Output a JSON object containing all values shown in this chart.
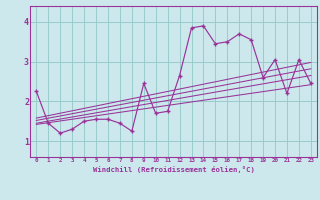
{
  "xlabel": "Windchill (Refroidissement éolien,°C)",
  "bg_color": "#cce8ec",
  "grid_color": "#99cccc",
  "line_color": "#993399",
  "spine_color": "#993399",
  "xlim": [
    -0.5,
    23.5
  ],
  "ylim": [
    0.6,
    4.4
  ],
  "xticks": [
    0,
    1,
    2,
    3,
    4,
    5,
    6,
    7,
    8,
    9,
    10,
    11,
    12,
    13,
    14,
    15,
    16,
    17,
    18,
    19,
    20,
    21,
    22,
    23
  ],
  "yticks": [
    1,
    2,
    3,
    4
  ],
  "series": [
    [
      0,
      2.25
    ],
    [
      1,
      1.45
    ],
    [
      2,
      1.2
    ],
    [
      3,
      1.3
    ],
    [
      4,
      1.5
    ],
    [
      5,
      1.55
    ],
    [
      6,
      1.55
    ],
    [
      7,
      1.45
    ],
    [
      8,
      1.25
    ],
    [
      9,
      2.45
    ],
    [
      10,
      1.7
    ],
    [
      11,
      1.75
    ],
    [
      12,
      2.65
    ],
    [
      13,
      3.85
    ],
    [
      14,
      3.9
    ],
    [
      15,
      3.45
    ],
    [
      16,
      3.5
    ],
    [
      17,
      3.7
    ],
    [
      18,
      3.55
    ],
    [
      19,
      2.6
    ],
    [
      20,
      3.05
    ],
    [
      21,
      2.2
    ],
    [
      22,
      3.05
    ],
    [
      23,
      2.45
    ]
  ],
  "trend_series": [
    [
      [
        0,
        1.42
      ],
      [
        23,
        2.42
      ]
    ],
    [
      [
        0,
        1.45
      ],
      [
        23,
        2.65
      ]
    ],
    [
      [
        0,
        1.52
      ],
      [
        23,
        2.82
      ]
    ],
    [
      [
        0,
        1.58
      ],
      [
        23,
        2.98
      ]
    ]
  ]
}
